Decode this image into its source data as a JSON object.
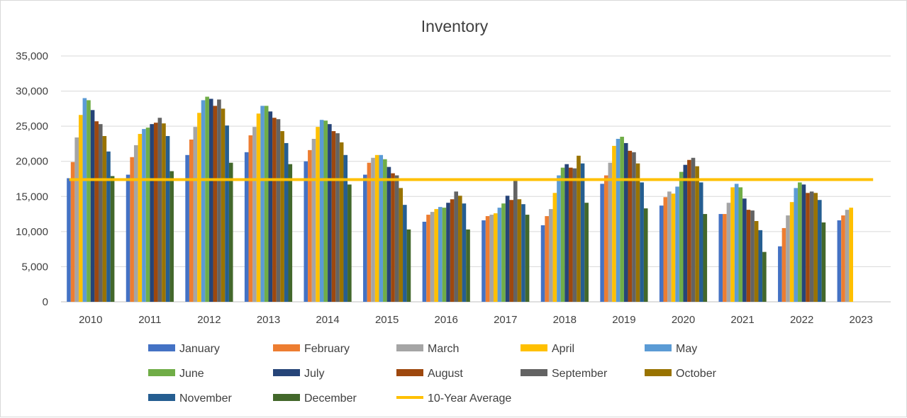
{
  "chart_data": {
    "type": "bar",
    "title": "Inventory",
    "xlabel": "",
    "ylabel": "",
    "ylim": [
      0,
      35000
    ],
    "yticks": [
      "0",
      "5,000",
      "10,000",
      "15,000",
      "20,000",
      "25,000",
      "30,000",
      "35,000"
    ],
    "ytick_values": [
      0,
      5000,
      10000,
      15000,
      20000,
      25000,
      30000,
      35000
    ],
    "grid": true,
    "legend_position": "bottom",
    "categories": [
      "2010",
      "2011",
      "2012",
      "2013",
      "2014",
      "2015",
      "2016",
      "2017",
      "2018",
      "2019",
      "2020",
      "2021",
      "2022",
      "2023"
    ],
    "series": [
      {
        "name": "January",
        "color": "#4472C4",
        "values": [
          17600,
          18100,
          20900,
          21300,
          20000,
          18100,
          11400,
          11600,
          10900,
          16800,
          13700,
          12500,
          7900,
          11600
        ]
      },
      {
        "name": "February",
        "color": "#ED7D31",
        "values": [
          19900,
          20600,
          23100,
          23700,
          21600,
          19800,
          12400,
          12200,
          12200,
          18000,
          14900,
          12500,
          10500,
          12300
        ]
      },
      {
        "name": "March",
        "color": "#A5A5A5",
        "values": [
          23400,
          22300,
          24900,
          24900,
          23200,
          20500,
          12800,
          12400,
          13200,
          19800,
          15700,
          14100,
          12300,
          13100
        ]
      },
      {
        "name": "April",
        "color": "#FFC000",
        "values": [
          26600,
          23900,
          26900,
          26800,
          24900,
          20900,
          13200,
          12600,
          15500,
          22200,
          15400,
          16300,
          14200,
          13400
        ]
      },
      {
        "name": "May",
        "color": "#5B9BD5",
        "values": [
          29000,
          24600,
          28700,
          27900,
          25900,
          20900,
          13500,
          13400,
          18000,
          23200,
          16400,
          16800,
          16200,
          null
        ]
      },
      {
        "name": "June",
        "color": "#70AD47",
        "values": [
          28700,
          24800,
          29200,
          27900,
          25800,
          20300,
          13400,
          14000,
          19100,
          23500,
          18500,
          16300,
          17000,
          null
        ]
      },
      {
        "name": "July",
        "color": "#264478",
        "values": [
          27300,
          25300,
          28900,
          27100,
          25300,
          19200,
          14100,
          15100,
          19600,
          22600,
          19500,
          14700,
          16700,
          null
        ]
      },
      {
        "name": "August",
        "color": "#9E480E",
        "values": [
          25700,
          25500,
          27900,
          26200,
          24300,
          18300,
          14600,
          14500,
          19100,
          21500,
          20200,
          13100,
          15500,
          null
        ]
      },
      {
        "name": "September",
        "color": "#636363",
        "values": [
          25300,
          26200,
          28800,
          26000,
          24000,
          18000,
          15700,
          17200,
          19000,
          21300,
          20500,
          13000,
          15700,
          null
        ]
      },
      {
        "name": "October",
        "color": "#997300",
        "values": [
          23600,
          25400,
          27500,
          24300,
          22700,
          16200,
          15100,
          14600,
          20800,
          19700,
          19300,
          11500,
          15500,
          null
        ]
      },
      {
        "name": "November",
        "color": "#255E91",
        "values": [
          21400,
          23600,
          25100,
          22600,
          20900,
          13800,
          14000,
          13900,
          19700,
          17000,
          17000,
          10200,
          14500,
          null
        ]
      },
      {
        "name": "December",
        "color": "#43682B",
        "values": [
          17900,
          18600,
          19800,
          19600,
          16700,
          10300,
          10300,
          12400,
          14100,
          13300,
          12500,
          7100,
          11300,
          null
        ]
      }
    ],
    "reference_line": {
      "name": "10-Year Average",
      "color": "#FFC000",
      "value": 17400
    }
  }
}
